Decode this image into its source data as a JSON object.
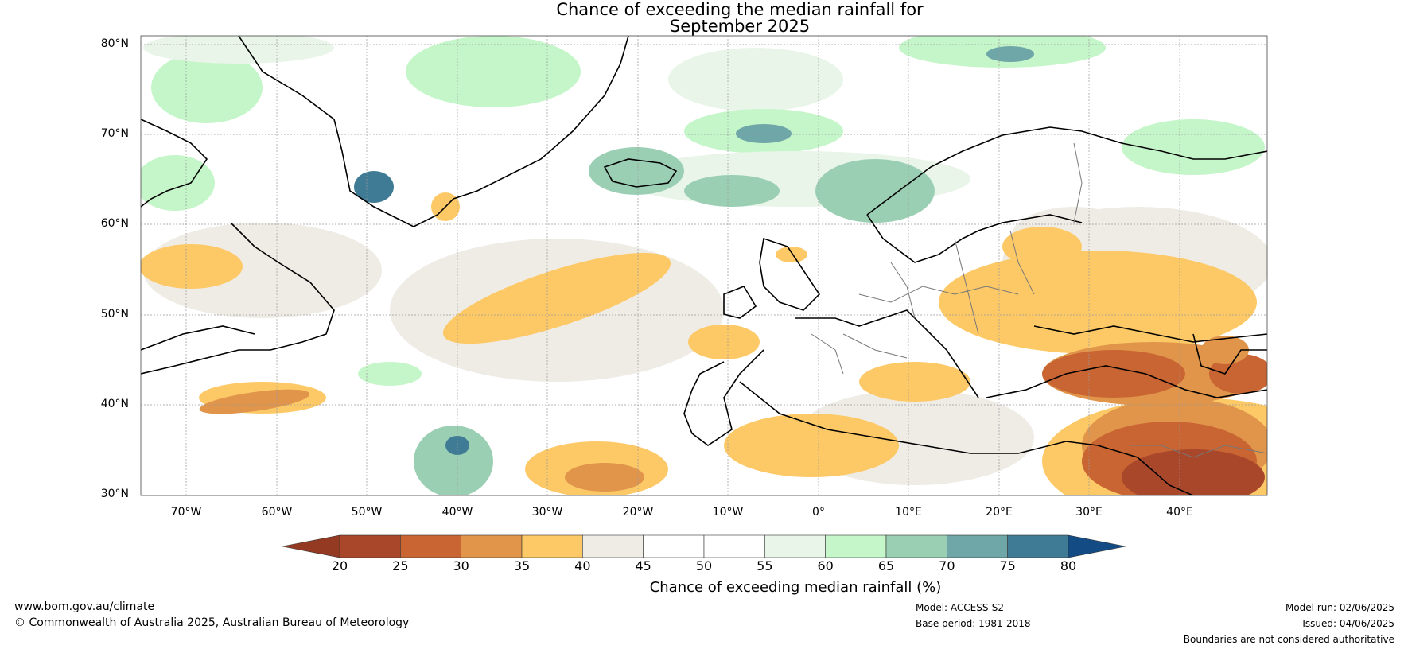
{
  "title_line1": "Chance of exceeding the median rainfall for",
  "title_line2": "September 2025",
  "lat_labels": [
    "80°N",
    "70°N",
    "60°N",
    "50°N",
    "40°N",
    "30°N"
  ],
  "lon_labels": [
    "70°W",
    "60°W",
    "50°W",
    "40°W",
    "30°W",
    "20°W",
    "10°W",
    "0°",
    "10°E",
    "20°E",
    "30°E",
    "40°E"
  ],
  "colorbar": {
    "ticks": [
      "20",
      "25",
      "30",
      "35",
      "40",
      "45",
      "50",
      "55",
      "60",
      "65",
      "70",
      "75",
      "80"
    ],
    "colors": [
      "#a9472a",
      "#c96533",
      "#e0954a",
      "#fdc967",
      "#efece6",
      "#ffffff",
      "#ffffff",
      "#e8f5e8",
      "#c5f6c9",
      "#9acfb4",
      "#6fa6a8",
      "#3f7b95"
    ],
    "under_color": "#953a22",
    "over_color": "#134c84",
    "label": "Chance of exceeding median rainfall (%)"
  },
  "footer": {
    "website": "www.bom.gov.au/climate",
    "copyright": "© Commonwealth of Australia 2025, Australian Bureau of Meteorology",
    "model": "Model: ACCESS-S2",
    "base_period": "Base period: 1981-2018",
    "model_run": "Model run: 02/06/2025",
    "issued": "Issued: 04/06/2025",
    "disclaimer": "Boundaries are not considered authoritative"
  }
}
